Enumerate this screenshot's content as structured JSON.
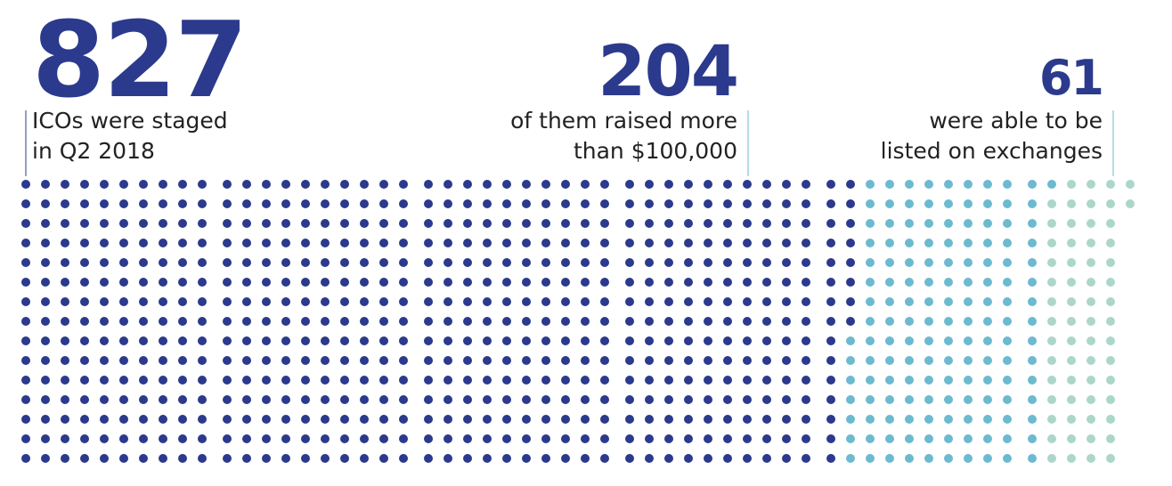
{
  "stats": [
    {
      "number": 827,
      "lines": [
        "ICOs were staged",
        "in Q2 2018"
      ],
      "color": "#2b3a8c"
    },
    {
      "number": 204,
      "lines": [
        "of them raised more",
        "than $100,000"
      ],
      "color": "#6cbad0"
    },
    {
      "number": 61,
      "lines": [
        "were able to be",
        "listed on exchanges"
      ],
      "color": "#acd6cb"
    }
  ]
}
